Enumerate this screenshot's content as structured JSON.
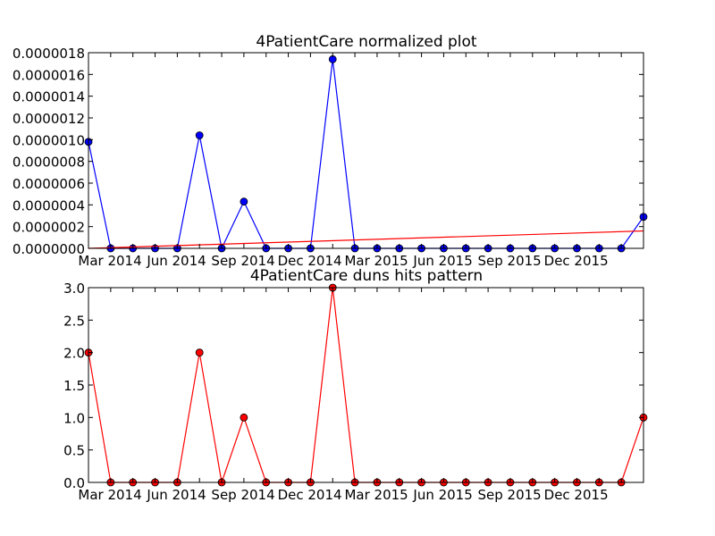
{
  "chart_data": [
    {
      "type": "line",
      "title": "4PatientCare normalized plot",
      "xlabel": "",
      "ylabel": "",
      "x_tick_labels": [
        "Mar 2014",
        "Jun 2014",
        "Sep 2014",
        "Dec 2014",
        "Mar 2015",
        "Jun 2015",
        "Sep 2015",
        "Dec 2015"
      ],
      "ylim": [
        0,
        1.8e-06
      ],
      "y_ticks": [
        "0.0000000",
        "0.0000002",
        "0.0000004",
        "0.0000006",
        "0.0000008",
        "0.0000010",
        "0.0000012",
        "0.0000014",
        "0.0000016",
        "0.0000018"
      ],
      "series": [
        {
          "color": "#0000ff",
          "marker": "circle",
          "values": [
            9.8e-07,
            0,
            0,
            0,
            0,
            1.04e-06,
            0,
            4.3e-07,
            0,
            0,
            0,
            1.74e-06,
            0,
            0,
            0,
            0,
            0,
            0,
            0,
            0,
            0,
            0,
            0,
            0,
            0,
            2.9e-07
          ]
        },
        {
          "color": "#ff0000",
          "marker": "none",
          "trend_start": 0.0,
          "trend_end": 1.6e-07
        }
      ]
    },
    {
      "type": "line",
      "title": "4PatientCare duns hits pattern",
      "xlabel": "",
      "ylabel": "",
      "x_tick_labels": [
        "Mar 2014",
        "Jun 2014",
        "Sep 2014",
        "Dec 2014",
        "Mar 2015",
        "Jun 2015",
        "Sep 2015",
        "Dec 2015"
      ],
      "ylim": [
        0,
        3.0
      ],
      "y_ticks": [
        "0.0",
        "0.5",
        "1.0",
        "1.5",
        "2.0",
        "2.5",
        "3.0"
      ],
      "series": [
        {
          "color": "#ff0000",
          "marker": "circle",
          "values": [
            2,
            0,
            0,
            0,
            0,
            2,
            0,
            1,
            0,
            0,
            0,
            3,
            0,
            0,
            0,
            0,
            0,
            0,
            0,
            0,
            0,
            0,
            0,
            0,
            0,
            1
          ]
        }
      ]
    }
  ]
}
